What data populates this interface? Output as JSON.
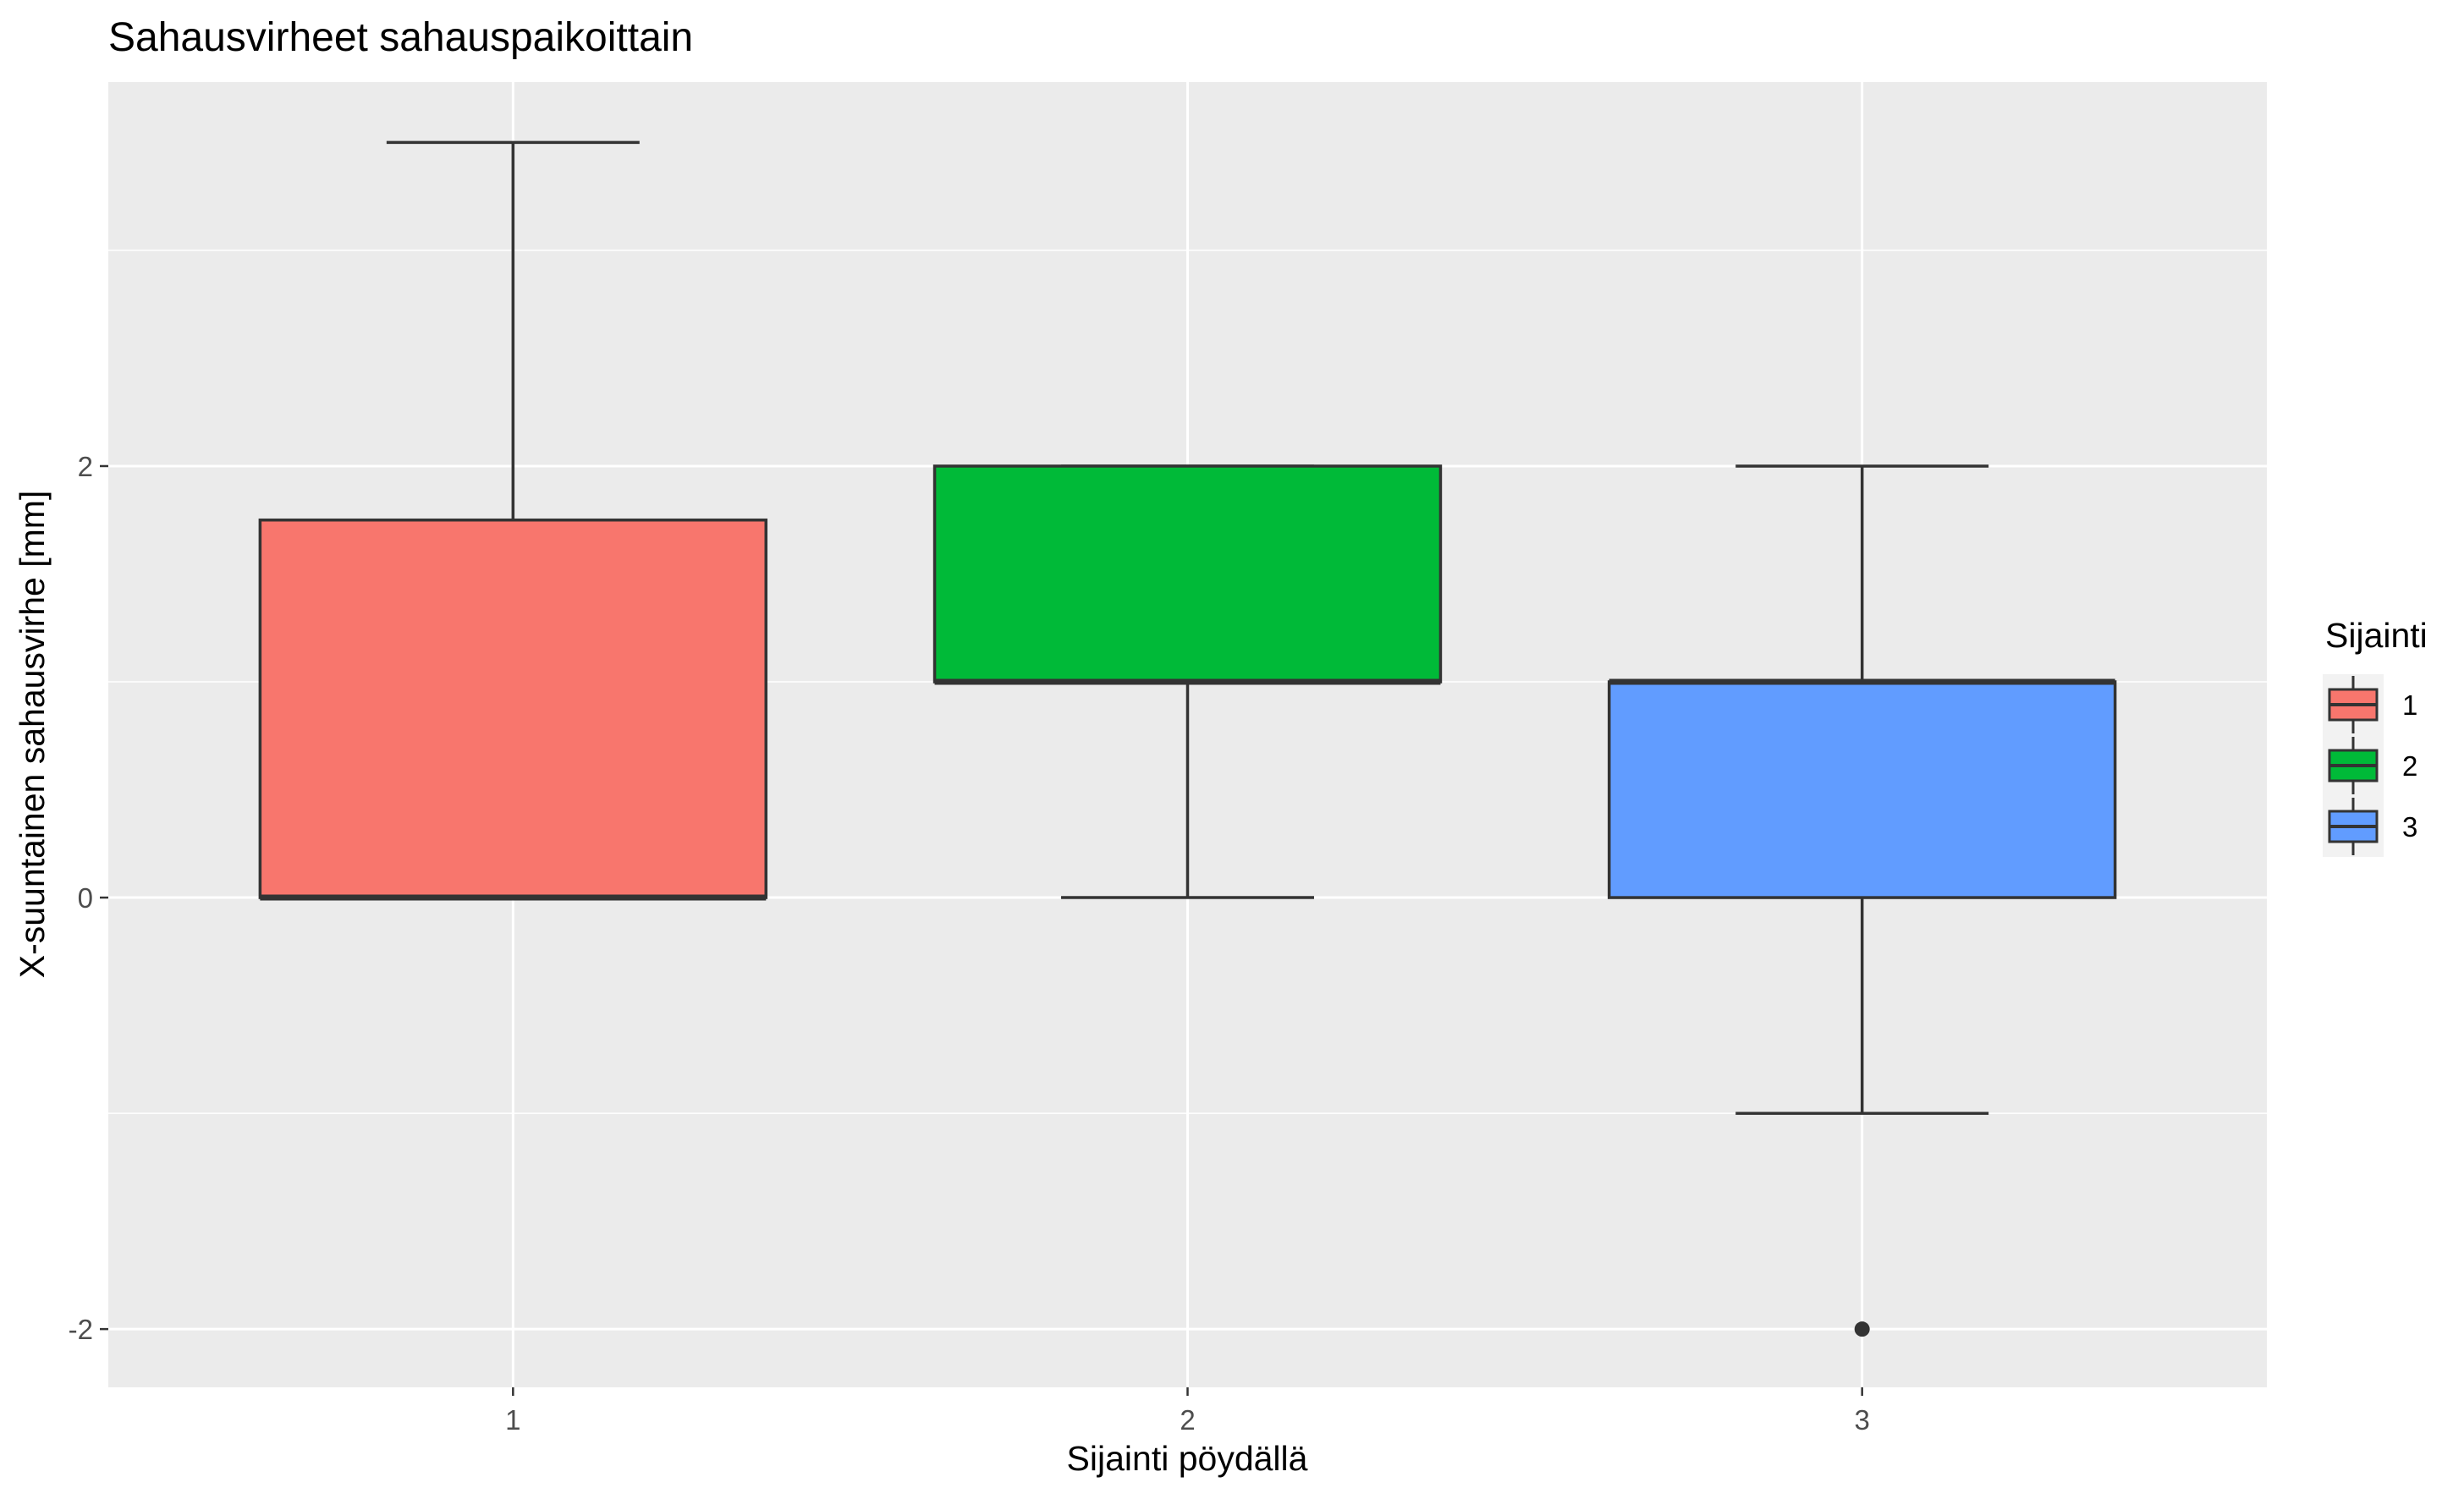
{
  "chart_data": {
    "type": "boxplot",
    "title": "Sahausvirheet sahauspaikoittain",
    "xlabel": "Sijainti pöydällä",
    "ylabel": "X-suuntainen sahausvirhe [mm]",
    "categories": [
      "1",
      "2",
      "3"
    ],
    "ylim": [
      -2.27,
      3.78
    ],
    "y_ticks": [
      -2,
      0,
      2
    ],
    "grid": true,
    "boxes": [
      {
        "category": "1",
        "whisker_low": 0,
        "q1": 0,
        "median": 0,
        "q3": 1.75,
        "whisker_high": 3.5,
        "outliers": [],
        "color": "#F8766D"
      },
      {
        "category": "2",
        "whisker_low": 0,
        "q1": 1,
        "median": 1,
        "q3": 2,
        "whisker_high": 2,
        "outliers": [],
        "color": "#00BA38"
      },
      {
        "category": "3",
        "whisker_low": -1,
        "q1": 0,
        "median": 1,
        "q3": 1,
        "whisker_high": 2,
        "outliers": [
          -2
        ],
        "color": "#619CFF"
      }
    ],
    "legend": {
      "title": "Sijainti",
      "position": "right",
      "entries": [
        {
          "label": "1",
          "color": "#F8766D"
        },
        {
          "label": "2",
          "color": "#00BA38"
        },
        {
          "label": "3",
          "color": "#619CFF"
        }
      ]
    },
    "panel_background": "#EBEBEB",
    "box_outline_color": "#333333"
  }
}
